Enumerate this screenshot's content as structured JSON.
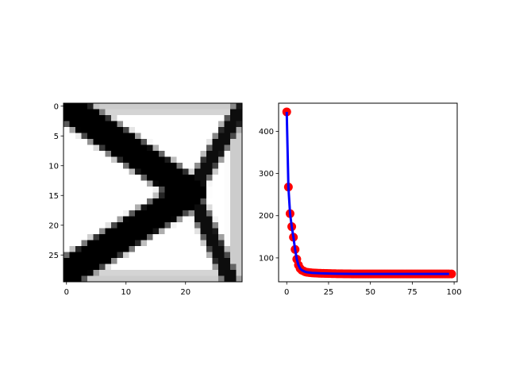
{
  "figure": {
    "background": "#ffffff"
  },
  "chart_data": [
    {
      "type": "heatmap",
      "colormap": "gray_r",
      "rows": 30,
      "cols": 30,
      "xlim": [
        -0.5,
        29.5
      ],
      "ylim": [
        29.5,
        -0.5
      ],
      "xticks": [
        0,
        10,
        20
      ],
      "xtick_labels": [
        "0",
        "10",
        "20"
      ],
      "yticks": [
        0,
        5,
        10,
        15,
        20,
        25
      ],
      "ytick_labels": [
        "0",
        "5",
        "10",
        "15",
        "20",
        "25"
      ],
      "structure": {
        "frame_members": [
          {
            "from": [
              0,
              0
            ],
            "to": [
              29,
              0
            ],
            "thickness": 1.3,
            "density": 0.2
          },
          {
            "from": [
              0,
              29
            ],
            "to": [
              29,
              29
            ],
            "thickness": 1.3,
            "density": 0.2
          },
          {
            "from": [
              29,
              0
            ],
            "to": [
              29,
              29
            ],
            "thickness": 1.6,
            "density": 0.2
          }
        ],
        "members": [
          {
            "from": [
              0,
              0
            ],
            "to": [
              21,
              14.5
            ],
            "thickness": 2.6,
            "density": 1.0
          },
          {
            "from": [
              0,
              28
            ],
            "to": [
              21,
              14.5
            ],
            "thickness": 2.6,
            "density": 1.0
          },
          {
            "from": [
              21,
              14.5
            ],
            "to": [
              29,
              1
            ],
            "thickness": 1.4,
            "density": 0.95
          },
          {
            "from": [
              21,
              14.5
            ],
            "to": [
              27.5,
              29
            ],
            "thickness": 1.4,
            "density": 0.95
          }
        ],
        "node": {
          "at": [
            21,
            14.5
          ],
          "radius": 2.6,
          "density": 1.0
        }
      },
      "xlabel": "",
      "ylabel": "",
      "title": ""
    },
    {
      "type": "line",
      "x": [
        0,
        1,
        2,
        3,
        4,
        5,
        6,
        7,
        8,
        9,
        10,
        11,
        12,
        13,
        14,
        15,
        20,
        25,
        30,
        40,
        50,
        60,
        70,
        80,
        90,
        97
      ],
      "y": [
        446,
        268,
        205,
        174,
        149,
        120,
        97,
        83,
        75,
        71,
        69,
        67,
        66,
        65.5,
        65,
        64.5,
        63.5,
        63,
        62.5,
        62,
        62,
        62,
        62,
        62,
        62,
        62
      ],
      "marker_color": "#ff0000",
      "line_color": "#0000ff",
      "xlim": [
        -4.85,
        101.85
      ],
      "ylim": [
        43.4,
        466.6
      ],
      "xticks": [
        0,
        25,
        50,
        75,
        100
      ],
      "xtick_labels": [
        "0",
        "25",
        "50",
        "75",
        "100"
      ],
      "yticks": [
        100,
        200,
        300,
        400
      ],
      "ytick_labels": [
        "100",
        "200",
        "300",
        "400"
      ],
      "xlabel": "",
      "ylabel": "",
      "title": ""
    }
  ]
}
